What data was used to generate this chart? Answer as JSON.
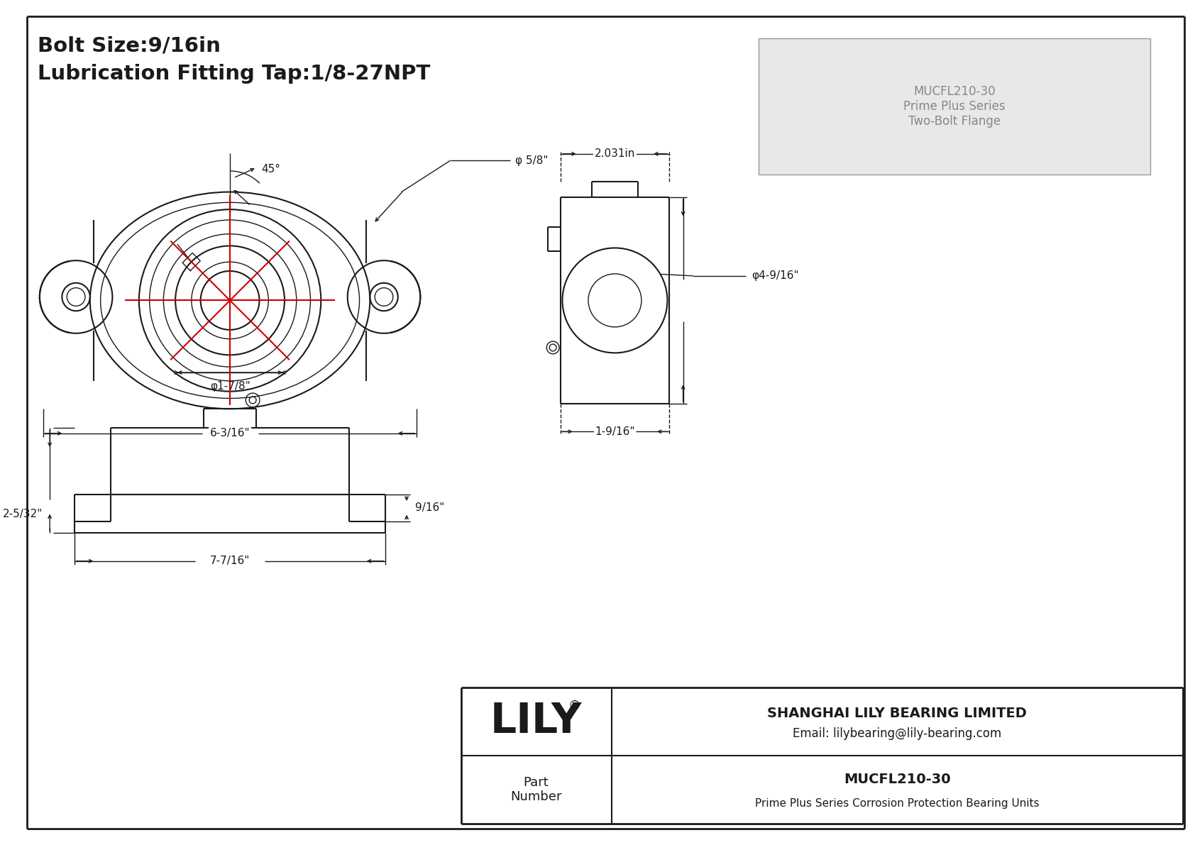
{
  "bg_color": "#ffffff",
  "line_color": "#1a1a1a",
  "red_color": "#cc0000",
  "title_line1": "Bolt Size:9/16in",
  "title_line2": "Lubrication Fitting Tap:1/8-27NPT",
  "company": "SHANGHAI LILY BEARING LIMITED",
  "email": "Email: lilybearing@lily-bearing.com",
  "part_number": "MUCFL210-30",
  "part_desc": "Prime Plus Series Corrosion Protection Bearing Units",
  "part_label": "Part\nNumber",
  "lily_text": "LILY",
  "reg_mark": "®",
  "dim_45": "45°",
  "dim_phi58": "φ 5/8\"",
  "dim_phi178": "φ1-7/8\"",
  "dim_636": "6-3/16\"",
  "dim_2031": "2.031in",
  "dim_phi4916": "φ4-9/16\"",
  "dim_1916": "1-9/16\"",
  "dim_2532": "2-5/32\"",
  "dim_916": "9/16\"",
  "dim_7716": "7-7/16\""
}
